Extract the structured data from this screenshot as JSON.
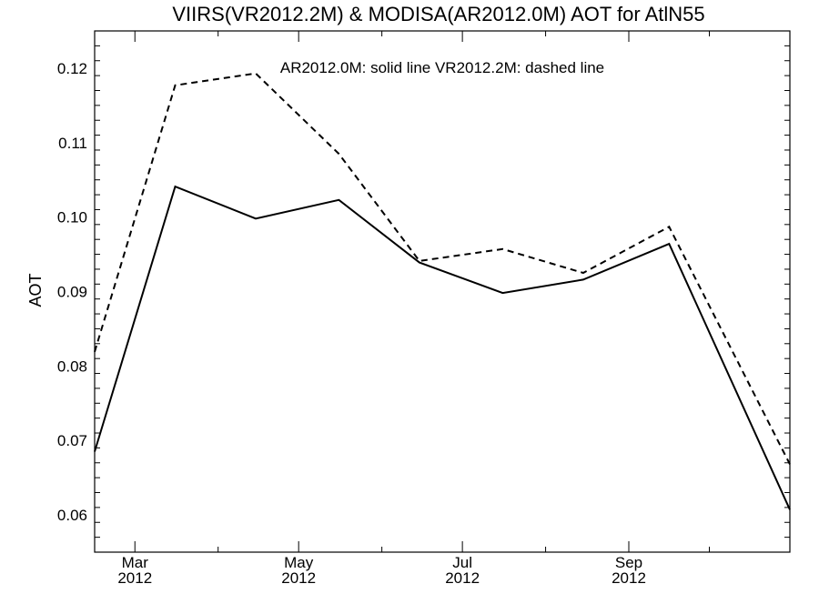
{
  "chart_data": {
    "type": "line",
    "title": "VIIRS(VR2012.2M) & MODISA(AR2012.0M)  AOT for AtlN55",
    "ylabel": "AOT",
    "xlabel": "",
    "annotation": "AR2012.0M: solid line   VR2012.2M: dashed line",
    "xlim": [
      "2012-02-15",
      "2012-10-31"
    ],
    "ylim": [
      0.055,
      0.125
    ],
    "yticks": [
      {
        "value": 0.06,
        "label": "0.06"
      },
      {
        "value": 0.07,
        "label": "0.07"
      },
      {
        "value": 0.08,
        "label": "0.08"
      },
      {
        "value": 0.09,
        "label": "0.09"
      },
      {
        "value": 0.1,
        "label": "0.10"
      },
      {
        "value": 0.11,
        "label": "0.11"
      },
      {
        "value": 0.12,
        "label": "0.12"
      }
    ],
    "xticks_major": [
      {
        "date": "2012-03-01",
        "month": "Mar",
        "year": "2012"
      },
      {
        "date": "2012-05-01",
        "month": "May",
        "year": "2012"
      },
      {
        "date": "2012-07-01",
        "month": "Jul",
        "year": "2012"
      },
      {
        "date": "2012-09-01",
        "month": "Sep",
        "year": "2012"
      }
    ],
    "xticks_minor": [
      "2012-04-01",
      "2012-06-01",
      "2012-08-01",
      "2012-10-01"
    ],
    "x": [
      "2012-02-15",
      "2012-03-16",
      "2012-04-15",
      "2012-05-16",
      "2012-06-15",
      "2012-07-16",
      "2012-08-15",
      "2012-09-16",
      "2012-10-31"
    ],
    "series": [
      {
        "name": "AR2012.0M",
        "style": "solid",
        "color": "#000000",
        "values": [
          0.0685,
          0.1041,
          0.0998,
          0.1023,
          0.0939,
          0.0898,
          0.0916,
          0.0964,
          0.0607
        ]
      },
      {
        "name": "VR2012.2M",
        "style": "dashed",
        "color": "#000000",
        "values": [
          0.0819,
          0.1177,
          0.1193,
          0.1085,
          0.0941,
          0.0957,
          0.0925,
          0.0987,
          0.0668
        ]
      }
    ],
    "grid": false
  }
}
